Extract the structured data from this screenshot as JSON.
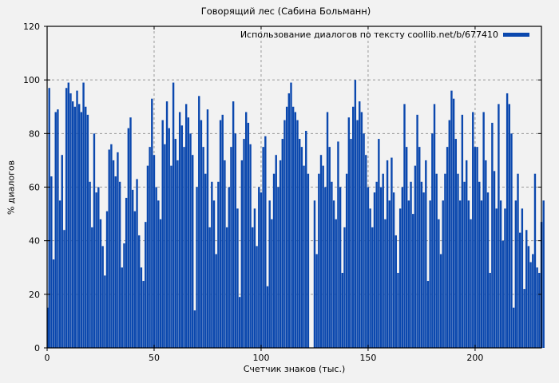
{
  "figure": {
    "background": "#f2f2f2"
  },
  "chart_data": {
    "type": "bar",
    "title": "Говорящий лес (Сабина Больманн)",
    "xlabel": "Счетчик знаков (тыс.)",
    "ylabel": "% диалогов",
    "grid": true,
    "legend_position": "top-right-inside",
    "xlim": [
      0,
      231
    ],
    "ylim": [
      0,
      120
    ],
    "xticks": [
      0,
      50,
      100,
      150,
      200
    ],
    "yticks": [
      0,
      20,
      40,
      60,
      80,
      100,
      120
    ],
    "bar_color": "#0b48ae",
    "grid_color": "#9a9a9a",
    "series": [
      {
        "name": "Использование диалогов по тексту coollib.net/b/677410",
        "x_start": 0,
        "x_step": 1,
        "values": [
          15,
          97,
          64,
          33,
          88,
          89,
          55,
          72,
          44,
          97,
          99,
          95,
          92,
          90,
          96,
          91,
          88,
          99,
          90,
          87,
          62,
          45,
          80,
          58,
          60,
          48,
          38,
          27,
          51,
          74,
          76,
          70,
          64,
          73,
          62,
          30,
          39,
          56,
          82,
          86,
          59,
          51,
          63,
          42,
          30,
          25,
          47,
          68,
          75,
          93,
          72,
          60,
          55,
          48,
          85,
          76,
          92,
          82,
          68,
          99,
          78,
          70,
          88,
          83,
          75,
          91,
          86,
          80,
          72,
          14,
          60,
          94,
          85,
          75,
          65,
          89,
          45,
          62,
          55,
          35,
          62,
          85,
          87,
          70,
          45,
          60,
          75,
          92,
          80,
          52,
          19,
          70,
          78,
          88,
          84,
          76,
          45,
          52,
          38,
          60,
          58,
          75,
          79,
          23,
          55,
          48,
          65,
          72,
          60,
          70,
          78,
          85,
          90,
          95,
          99,
          90,
          88,
          85,
          78,
          75,
          68,
          81,
          65,
          0,
          0,
          55,
          35,
          65,
          72,
          68,
          60,
          88,
          75,
          62,
          55,
          48,
          77,
          60,
          28,
          45,
          65,
          86,
          78,
          90,
          100,
          85,
          92,
          88,
          80,
          72,
          60,
          52,
          45,
          58,
          62,
          78,
          60,
          65,
          48,
          70,
          55,
          71,
          58,
          42,
          28,
          52,
          60,
          91,
          75,
          55,
          62,
          50,
          68,
          87,
          75,
          62,
          58,
          70,
          25,
          55,
          80,
          91,
          65,
          48,
          35,
          55,
          65,
          75,
          85,
          96,
          93,
          78,
          65,
          55,
          87,
          62,
          70,
          55,
          48,
          88,
          75,
          75,
          62,
          55,
          88,
          70,
          58,
          28,
          84,
          66,
          52,
          91,
          55,
          40,
          52,
          95,
          91,
          80,
          15,
          55,
          65,
          43,
          52,
          22,
          44,
          38,
          32,
          35,
          65,
          30,
          28,
          47,
          55
        ]
      }
    ]
  }
}
